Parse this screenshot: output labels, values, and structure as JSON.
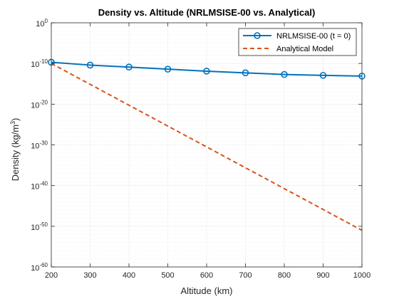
{
  "chart_data": {
    "type": "line",
    "title": "Density vs. Altitude (NRLMSISE-00 vs. Analytical)",
    "xlabel": "Altitude (km)",
    "ylabel": "Density (kg/m³)",
    "ylabel_main": "Density (kg/m",
    "ylabel_sup": "3",
    "ylabel_close": ")",
    "xlim": [
      200,
      1000
    ],
    "ylim_log10": [
      -60,
      0
    ],
    "yscale": "log",
    "grid": true,
    "legend_position": "top-right",
    "x_ticks": [
      200,
      300,
      400,
      500,
      600,
      700,
      800,
      900,
      1000
    ],
    "x_tick_labels": [
      "200",
      "300",
      "400",
      "500",
      "600",
      "700",
      "800",
      "900",
      "1000"
    ],
    "y_tick_exponents": [
      0,
      -10,
      -20,
      -30,
      -40,
      -50,
      -60
    ],
    "y_tick_labels": [
      {
        "base": "10",
        "exp": "0"
      },
      {
        "base": "10",
        "exp": "-10"
      },
      {
        "base": "10",
        "exp": "-20"
      },
      {
        "base": "10",
        "exp": "-30"
      },
      {
        "base": "10",
        "exp": "-40"
      },
      {
        "base": "10",
        "exp": "-50"
      },
      {
        "base": "10",
        "exp": "-60"
      }
    ],
    "series": [
      {
        "name": "NRLMSISE-00 (t = 0)",
        "color": "#0072BD",
        "style": "solid",
        "marker": "circle",
        "x": [
          200,
          300,
          400,
          500,
          600,
          700,
          800,
          900,
          1000
        ],
        "y": [
          2e-10,
          4e-11,
          1.3e-11,
          4e-12,
          1.3e-12,
          5e-13,
          2e-13,
          1.2e-13,
          8e-14
        ]
      },
      {
        "name": "Analytical Model",
        "color": "#D95319",
        "style": "dashed",
        "marker": "none",
        "x": [
          200,
          1000
        ],
        "y": [
          1e-10,
          1e-51
        ]
      }
    ]
  }
}
